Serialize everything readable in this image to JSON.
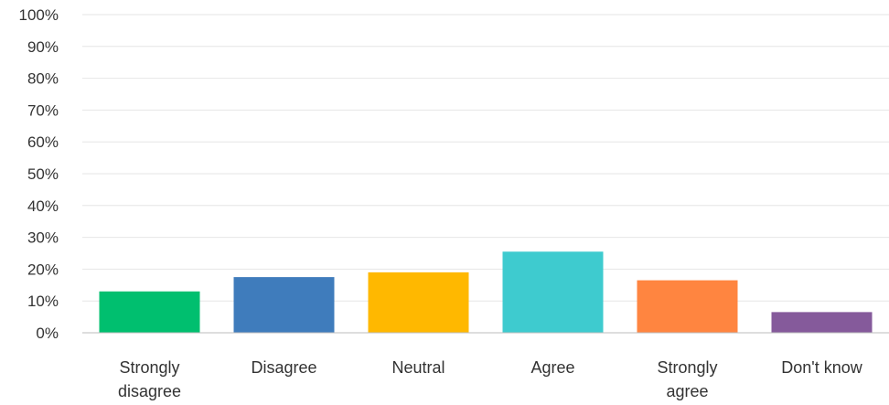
{
  "chart_data": {
    "type": "bar",
    "title": "",
    "xlabel": "",
    "ylabel": "",
    "categories": [
      [
        "Strongly",
        "disagree"
      ],
      [
        "Disagree"
      ],
      [
        "Neutral"
      ],
      [
        "Agree"
      ],
      [
        "Strongly",
        "agree"
      ],
      [
        "Don't know"
      ]
    ],
    "values": [
      13,
      17.5,
      19,
      25.5,
      16.5,
      6.5
    ],
    "colors": [
      "#00bf6f",
      "#3f7cbc",
      "#ffb800",
      "#3ecbcf",
      "#ff8540",
      "#855a9b"
    ],
    "ylim": [
      0,
      100
    ],
    "yticks": [
      "0%",
      "10%",
      "20%",
      "30%",
      "40%",
      "50%",
      "60%",
      "70%",
      "80%",
      "90%",
      "100%"
    ],
    "grid": true
  }
}
